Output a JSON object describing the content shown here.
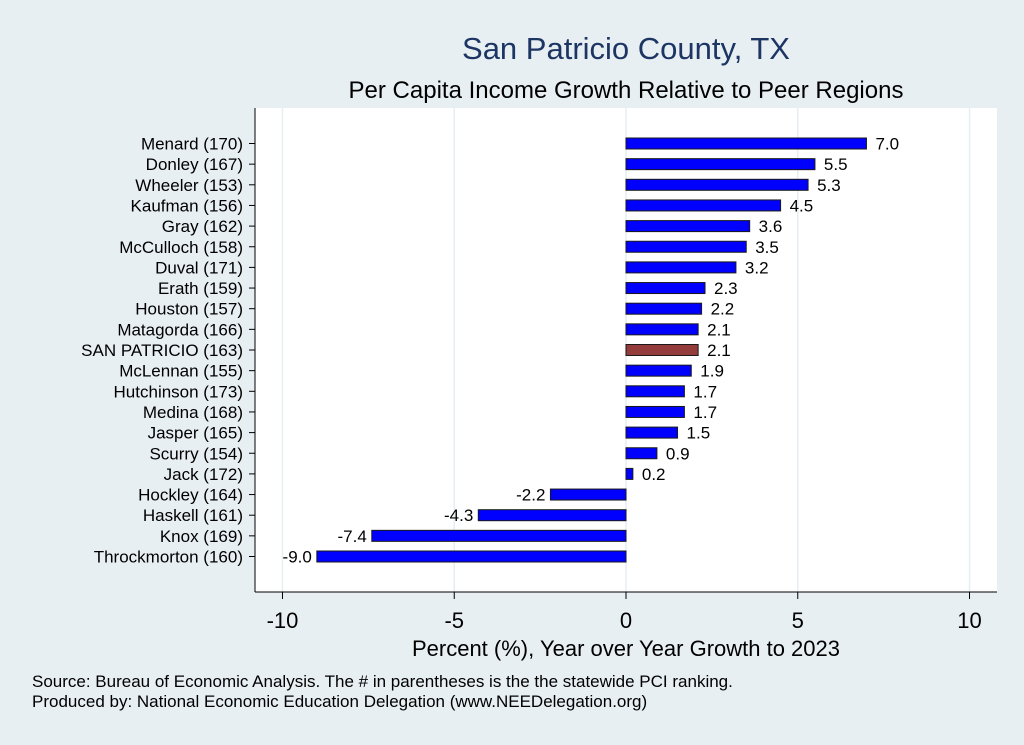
{
  "chart_data": {
    "type": "bar",
    "orientation": "horizontal",
    "title": "San Patricio County, TX",
    "subtitle": "Per Capita Income Growth Relative to Peer Regions",
    "xlabel": "Percent (%), Year over Year Growth to 2023",
    "xlim": [
      -10.8,
      10.8
    ],
    "xticks": [
      -10,
      -5,
      0,
      5,
      10
    ],
    "grid": true,
    "categories": [
      "Menard (170)",
      "Donley (167)",
      "Wheeler (153)",
      "Kaufman (156)",
      "Gray (162)",
      "McCulloch (158)",
      "Duval (171)",
      "Erath (159)",
      "Houston (157)",
      "Matagorda (166)",
      "SAN PATRICIO (163)",
      "McLennan (155)",
      "Hutchinson (173)",
      "Medina (168)",
      "Jasper (165)",
      "Scurry (154)",
      "Jack (172)",
      "Hockley (164)",
      "Haskell (161)",
      "Knox (169)",
      "Throckmorton (160)"
    ],
    "values": [
      7.0,
      5.5,
      5.3,
      4.5,
      3.6,
      3.5,
      3.2,
      2.3,
      2.2,
      2.1,
      2.1,
      1.9,
      1.7,
      1.7,
      1.5,
      0.9,
      0.2,
      -2.2,
      -4.3,
      -7.4,
      -9.0
    ],
    "value_labels": [
      "7.0",
      "5.5",
      "5.3",
      "4.5",
      "3.6",
      "3.5",
      "3.2",
      "2.3",
      "2.2",
      "2.1",
      "2.1",
      "1.9",
      "1.7",
      "1.7",
      "1.5",
      "0.9",
      "0.2",
      "-2.2",
      "-4.3",
      "-7.4",
      "-9.0"
    ],
    "highlight_category": "SAN PATRICIO (163)",
    "colors": {
      "bar": "#0000ff",
      "highlight": "#943c3c",
      "bar_outline": "#1a1a1a",
      "plot_bg": "#ffffff",
      "page_bg": "#e8eff3",
      "grid": "#e6eef2",
      "title": "#1c3563"
    }
  },
  "footnotes": {
    "source": "Source: Bureau of Economic Analysis. The # in parentheses is the the statewide PCI ranking.",
    "produced_by": "Produced by: National Economic Education Delegation (www.NEEDelegation.org)"
  }
}
